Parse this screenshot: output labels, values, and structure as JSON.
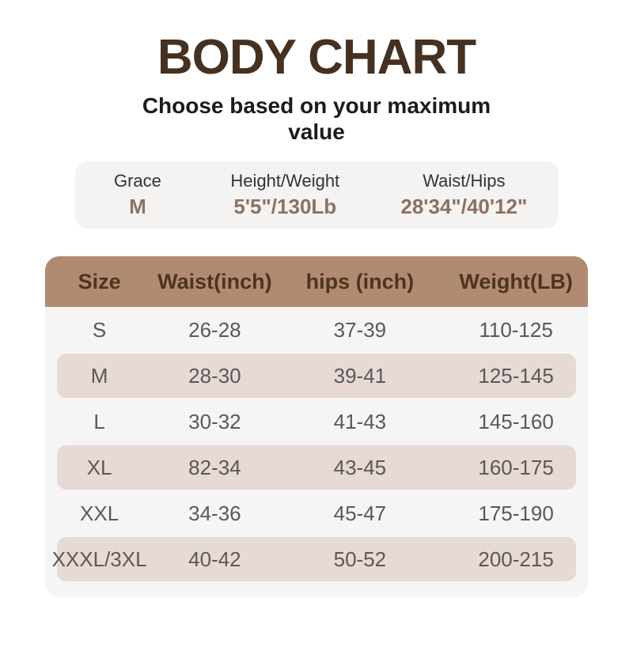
{
  "page": {
    "title": "BODY CHART",
    "subtitle": "Choose based on your maximum value"
  },
  "profile": {
    "columns": [
      {
        "label": "Grace",
        "value": "M"
      },
      {
        "label": "Height/Weight",
        "value": "5'5\"/130Lb"
      },
      {
        "label": "Waist/Hips",
        "value": "28'34\"/40'12\""
      }
    ]
  },
  "size_chart": {
    "headers": [
      "Size",
      "Waist(inch)",
      "hips (inch)",
      "Weight(LB)"
    ],
    "rows": [
      {
        "size": "S",
        "waist": "26-28",
        "hips": "37-39",
        "weight": "110-125"
      },
      {
        "size": "M",
        "waist": "28-30",
        "hips": "39-41",
        "weight": "125-145"
      },
      {
        "size": "L",
        "waist": "30-32",
        "hips": "41-43",
        "weight": "145-160"
      },
      {
        "size": "XL",
        "waist": "82-34",
        "hips": "43-45",
        "weight": "160-175"
      },
      {
        "size": "XXL",
        "waist": "34-36",
        "hips": "45-47",
        "weight": "175-190"
      },
      {
        "size": "XXXL/3XL",
        "waist": "40-42",
        "hips": "50-52",
        "weight": "200-215"
      }
    ]
  },
  "chart_data": {
    "type": "table",
    "title": "BODY CHART",
    "subtitle": "Choose based on your maximum value",
    "columns": [
      "Size",
      "Waist(inch)",
      "hips (inch)",
      "Weight(LB)"
    ],
    "rows": [
      [
        "S",
        "26-28",
        "37-39",
        "110-125"
      ],
      [
        "M",
        "28-30",
        "39-41",
        "125-145"
      ],
      [
        "L",
        "30-32",
        "41-43",
        "145-160"
      ],
      [
        "XL",
        "82-34",
        "43-45",
        "160-175"
      ],
      [
        "XXL",
        "34-36",
        "45-47",
        "175-190"
      ],
      [
        "XXXL/3XL",
        "40-42",
        "50-52",
        "200-215"
      ]
    ],
    "highlighted_profile": {
      "name": "Grace",
      "size": "M",
      "height_weight": "5'5\"/130Lb",
      "waist_hips": "28'34\"/40'12\""
    }
  },
  "colors": {
    "title_brown": "#46301f",
    "header_tan": "#b18b71",
    "header_text": "#4d3421",
    "row_pink": "#e7d9d3",
    "card_gray": "#f6f5f5",
    "info_bar_gray": "#f4f3f1",
    "value_brown": "#8d7160",
    "cell_text": "#59585a"
  }
}
